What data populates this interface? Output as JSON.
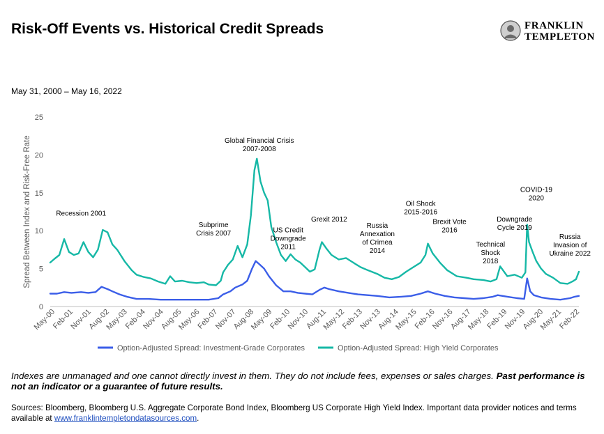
{
  "title": "Risk-Off Events vs. Historical Credit Spreads",
  "brand": {
    "line1": "FRANKLIN",
    "line2": "TEMPLETON",
    "logo_icon": "portrait-medallion-icon"
  },
  "subtitle": "May 31, 2000 – May 16, 2022",
  "disclaimer": {
    "text": "Indexes are unmanaged and one cannot directly invest in them. They do not include fees, expenses or sales charges. ",
    "bold": "Past performance is not an indicator or a guarantee of future results."
  },
  "sources": {
    "text": "Sources: Bloomberg, Bloomberg U.S. Aggregate Corporate Bond Index, Bloomberg US Corporate High Yield Index. Important data provider notices and terms available at ",
    "link": "www.franklintempletondatasources.com",
    "suffix": "."
  },
  "chart_data": {
    "type": "line",
    "ylabel": "Spread Between Index and Risk-Free Rate",
    "xlabel": "",
    "ylim": [
      0,
      25
    ],
    "yticks": [
      0,
      5,
      10,
      15,
      20,
      25
    ],
    "xlim": [
      2000.42,
      2022.37
    ],
    "xtick_labels": [
      "May-00",
      "Feb-01",
      "Nov-01",
      "Aug-02",
      "May-03",
      "Feb-04",
      "Nov-04",
      "Aug-05",
      "May-06",
      "Feb-07",
      "Nov-07",
      "Aug-08",
      "May-09",
      "Feb-10",
      "Nov-10",
      "Aug-11",
      "May-12",
      "Feb-13",
      "Nov-13",
      "Aug-14",
      "May-15",
      "Feb-16",
      "Nov-16",
      "Aug-17",
      "May-18",
      "Feb-19",
      "Nov-19",
      "Aug-20",
      "May-21",
      "Feb-22"
    ],
    "grid": false,
    "legend": "bottom",
    "series": [
      {
        "name": "Option-Adjusted Spread: Investment-Grade Corporates",
        "color": "#3b5ee8",
        "x": [
          2000.42,
          2000.7,
          2001.0,
          2001.3,
          2001.7,
          2002.0,
          2002.3,
          2002.55,
          2002.8,
          2003.0,
          2003.3,
          2003.6,
          2004.0,
          2004.5,
          2005.0,
          2005.5,
          2006.0,
          2006.5,
          2007.0,
          2007.4,
          2007.6,
          2007.9,
          2008.1,
          2008.4,
          2008.6,
          2008.8,
          2008.95,
          2009.1,
          2009.3,
          2009.5,
          2009.8,
          2010.1,
          2010.4,
          2010.7,
          2011.0,
          2011.3,
          2011.6,
          2011.8,
          2012.0,
          2012.4,
          2012.8,
          2013.2,
          2013.6,
          2014.0,
          2014.5,
          2015.0,
          2015.4,
          2015.8,
          2016.1,
          2016.4,
          2016.8,
          2017.2,
          2017.6,
          2018.0,
          2018.4,
          2018.8,
          2019.0,
          2019.4,
          2019.8,
          2020.1,
          2020.22,
          2020.35,
          2020.5,
          2020.8,
          2021.2,
          2021.6,
          2022.0,
          2022.2,
          2022.37
        ],
        "values": [
          1.7,
          1.7,
          1.9,
          1.8,
          1.9,
          1.8,
          1.9,
          2.6,
          2.3,
          2.0,
          1.6,
          1.3,
          1.0,
          1.0,
          0.9,
          0.9,
          0.9,
          0.9,
          0.9,
          1.1,
          1.6,
          2.0,
          2.5,
          2.9,
          3.4,
          5.0,
          6.0,
          5.6,
          5.0,
          4.0,
          2.8,
          2.0,
          2.0,
          1.8,
          1.7,
          1.6,
          2.2,
          2.5,
          2.3,
          2.0,
          1.8,
          1.6,
          1.5,
          1.4,
          1.2,
          1.3,
          1.4,
          1.7,
          2.0,
          1.7,
          1.4,
          1.2,
          1.1,
          1.0,
          1.1,
          1.3,
          1.5,
          1.3,
          1.1,
          1.0,
          3.7,
          2.0,
          1.5,
          1.2,
          1.0,
          0.9,
          1.1,
          1.3,
          1.4
        ]
      },
      {
        "name": "Option-Adjusted Spread: High Yield Corporates",
        "color": "#16b8a6",
        "x": [
          2000.42,
          2000.6,
          2000.8,
          2001.0,
          2001.2,
          2001.4,
          2001.6,
          2001.8,
          2002.0,
          2002.2,
          2002.4,
          2002.6,
          2002.8,
          2003.0,
          2003.2,
          2003.5,
          2003.8,
          2004.0,
          2004.3,
          2004.6,
          2004.9,
          2005.2,
          2005.4,
          2005.6,
          2005.9,
          2006.2,
          2006.5,
          2006.8,
          2007.0,
          2007.3,
          2007.5,
          2007.6,
          2007.8,
          2008.0,
          2008.2,
          2008.4,
          2008.6,
          2008.75,
          2008.9,
          2009.0,
          2009.15,
          2009.3,
          2009.45,
          2009.6,
          2009.8,
          2010.0,
          2010.2,
          2010.4,
          2010.6,
          2010.8,
          2011.0,
          2011.2,
          2011.4,
          2011.6,
          2011.7,
          2011.9,
          2012.1,
          2012.4,
          2012.7,
          2013.0,
          2013.3,
          2013.6,
          2014.0,
          2014.3,
          2014.6,
          2014.9,
          2015.2,
          2015.5,
          2015.8,
          2016.0,
          2016.1,
          2016.3,
          2016.6,
          2016.9,
          2017.3,
          2017.7,
          2018.0,
          2018.4,
          2018.7,
          2018.95,
          2019.1,
          2019.4,
          2019.7,
          2020.0,
          2020.15,
          2020.22,
          2020.3,
          2020.45,
          2020.6,
          2020.8,
          2021.0,
          2021.3,
          2021.6,
          2021.9,
          2022.1,
          2022.25,
          2022.37
        ],
        "values": [
          5.8,
          6.3,
          6.8,
          8.9,
          7.2,
          6.8,
          7.0,
          8.5,
          7.2,
          6.5,
          7.5,
          10.1,
          9.8,
          8.2,
          7.5,
          6.0,
          4.8,
          4.2,
          3.9,
          3.7,
          3.3,
          3.0,
          4.0,
          3.3,
          3.4,
          3.2,
          3.1,
          3.2,
          2.9,
          2.8,
          3.4,
          4.5,
          5.5,
          6.2,
          8.0,
          6.5,
          8.2,
          12.0,
          18.0,
          19.5,
          16.5,
          15.0,
          14.0,
          10.5,
          8.5,
          6.8,
          6.0,
          6.9,
          6.2,
          5.8,
          5.2,
          4.6,
          4.9,
          7.5,
          8.5,
          7.6,
          6.8,
          6.2,
          6.4,
          5.8,
          5.2,
          4.8,
          4.3,
          3.8,
          3.6,
          3.9,
          4.6,
          5.2,
          5.8,
          6.8,
          8.3,
          7.0,
          5.8,
          4.8,
          4.0,
          3.8,
          3.6,
          3.5,
          3.3,
          3.6,
          5.3,
          4.0,
          4.2,
          3.8,
          4.5,
          10.8,
          8.5,
          7.2,
          6.0,
          5.0,
          4.3,
          3.8,
          3.1,
          3.0,
          3.3,
          3.6,
          4.6
        ]
      }
    ],
    "annotations": [
      {
        "text": [
          "Recession 2001"
        ],
        "x": 2001.7,
        "y": 12.0
      },
      {
        "text": [
          "Global Financial Crisis",
          "2007-2008"
        ],
        "x": 2009.1,
        "y": 21.6
      },
      {
        "text": [
          "Subprime",
          "Crisis 2007"
        ],
        "x": 2007.2,
        "y": 10.5
      },
      {
        "text": [
          "US Credit",
          "Downgrade",
          "2011"
        ],
        "x": 2010.3,
        "y": 9.8
      },
      {
        "text": [
          "Grexit 2012"
        ],
        "x": 2012.0,
        "y": 11.2
      },
      {
        "text": [
          "Russia",
          "Annexation",
          "of Crimea",
          "2014"
        ],
        "x": 2014.0,
        "y": 10.4
      },
      {
        "text": [
          "Oil Shock",
          "2015-2016"
        ],
        "x": 2015.8,
        "y": 13.3
      },
      {
        "text": [
          "Brexit Vote",
          "2016"
        ],
        "x": 2017.0,
        "y": 10.9
      },
      {
        "text": [
          "Technical",
          "Shock",
          "2018"
        ],
        "x": 2018.7,
        "y": 7.9
      },
      {
        "text": [
          "Downgrade",
          "Cycle 2019"
        ],
        "x": 2019.7,
        "y": 11.2
      },
      {
        "text": [
          "COVID-19",
          "2020"
        ],
        "x": 2020.6,
        "y": 15.1
      },
      {
        "text": [
          "Russia",
          "Invasion of",
          "Ukraine 2022"
        ],
        "x": 2022.0,
        "y": 8.9
      }
    ]
  }
}
